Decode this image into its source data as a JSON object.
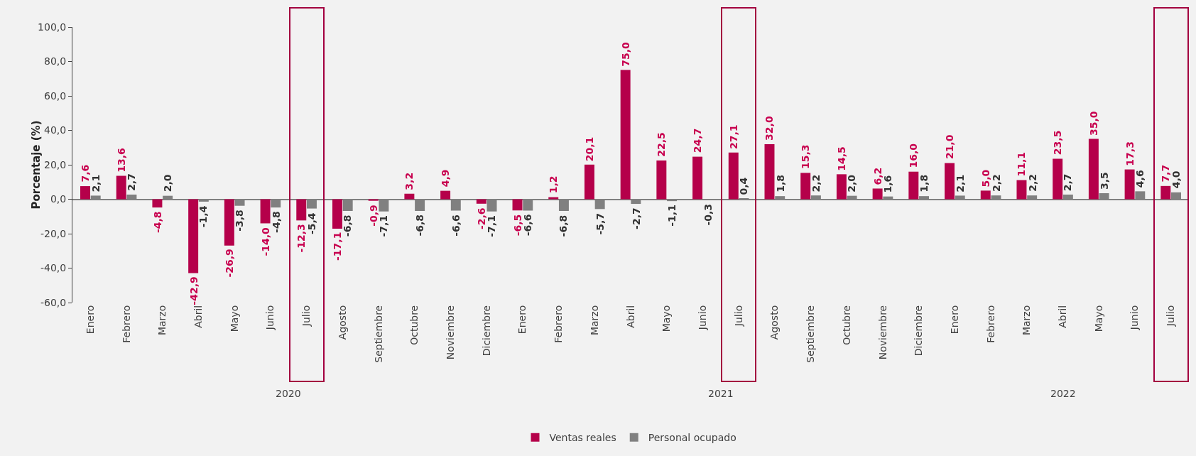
{
  "chart_data": {
    "type": "bar",
    "ylabel": "Porcentaje (%)",
    "categories": [
      "Enero",
      "Febrero",
      "Marzo",
      "Abril",
      "Mayo",
      "Junio",
      "Julio",
      "Agosto",
      "Septiembre",
      "Octubre",
      "Noviembre",
      "Diciembre",
      "Enero",
      "Febrero",
      "Marzo",
      "Abril",
      "Mayo",
      "Junio",
      "Julio",
      "Agosto",
      "Septiembre",
      "Octubre",
      "Noviembre",
      "Diciembre",
      "Enero",
      "Febrero",
      "Marzo",
      "Abril",
      "Mayo",
      "Junio",
      "Julio"
    ],
    "series": [
      {
        "name": "Ventas reales",
        "color": "#b5004a",
        "values": [
          7.6,
          13.6,
          -4.8,
          -42.9,
          -26.9,
          -14.0,
          -12.3,
          -17.1,
          -0.9,
          3.2,
          4.9,
          -2.6,
          -6.5,
          1.2,
          20.1,
          75.0,
          22.5,
          24.7,
          27.1,
          32.0,
          15.3,
          14.5,
          6.2,
          16.0,
          21.0,
          5.0,
          11.1,
          23.5,
          35.0,
          17.3,
          7.7
        ],
        "value_labels": [
          "7,6",
          "13,6",
          "-4,8",
          "-42,9",
          "-26,9",
          "-14,0",
          "-12,3",
          "-17,1",
          "-0,9",
          "3,2",
          "4,9",
          "-2,6",
          "-6,5",
          "1,2",
          "20,1",
          "75,0",
          "22,5",
          "24,7",
          "27,1",
          "32,0",
          "15,3",
          "14,5",
          "6,2",
          "16,0",
          "21,0",
          "5,0",
          "11,1",
          "23,5",
          "35,0",
          "17,3",
          "7,7"
        ]
      },
      {
        "name": "Personal ocupado",
        "color": "#808080",
        "values": [
          2.1,
          2.7,
          2.0,
          -1.4,
          -3.8,
          -4.8,
          -5.4,
          -6.8,
          -7.1,
          -6.8,
          -6.6,
          -7.1,
          -6.6,
          -6.8,
          -5.7,
          -2.7,
          -1.1,
          -0.3,
          0.4,
          1.8,
          2.2,
          2.0,
          1.6,
          1.8,
          2.1,
          2.2,
          2.2,
          2.7,
          3.5,
          4.6,
          4.0
        ],
        "value_labels": [
          "2,1",
          "2,7",
          "2,0",
          "-1,4",
          "-3,8",
          "-4,8",
          "-5,4",
          "-6,8",
          "-7,1",
          "-6,8",
          "-6,6",
          "-7,1",
          "-6,6",
          "-6,8",
          "-5,7",
          "-2,7",
          "-1,1",
          "-0,3",
          "0,4",
          "1,8",
          "2,2",
          "2,0",
          "1,6",
          "1,8",
          "2,1",
          "2,2",
          "2,2",
          "2,7",
          "3,5",
          "4,6",
          "4,0"
        ]
      }
    ],
    "ylim": [
      -60,
      100
    ],
    "yticks": [
      {
        "value": -60,
        "label": "-60,0"
      },
      {
        "value": -40,
        "label": "-40,0"
      },
      {
        "value": -20,
        "label": "-20,0"
      },
      {
        "value": 0,
        "label": "0,0"
      },
      {
        "value": 20,
        "label": "20,0"
      },
      {
        "value": 40,
        "label": "40,0"
      },
      {
        "value": 60,
        "label": "60,0"
      },
      {
        "value": 80,
        "label": "80,0"
      },
      {
        "value": 100,
        "label": "100,0"
      }
    ],
    "annotations": [
      "2020",
      "2021",
      "2022"
    ],
    "legend": "bottom"
  }
}
